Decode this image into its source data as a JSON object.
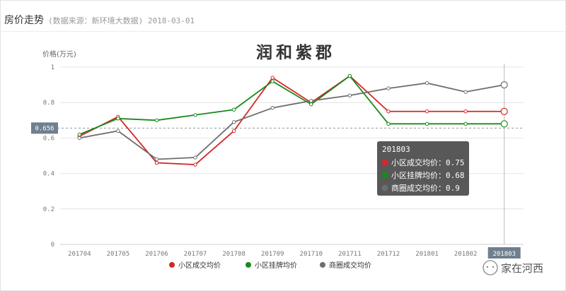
{
  "header": {
    "title": "房价走势",
    "subtitle": "(数据来源：新环境大数据) 2018-03-01"
  },
  "watermark": {
    "text": "家在河西",
    "icon": "wechat-icon"
  },
  "chart_data": {
    "type": "line",
    "title": "润和紫郡",
    "ylabel": "价格(万元)",
    "xlabel": "",
    "ylim": [
      0,
      1
    ],
    "yticks": [
      0,
      0.2,
      0.4,
      0.6,
      0.8,
      1
    ],
    "ytick_labels": [
      "0",
      "0.2",
      "0.4",
      "0.6",
      "0.8",
      "1"
    ],
    "grid": true,
    "legend_position": "bottom",
    "categories": [
      "201704",
      "201705",
      "201706",
      "201707",
      "201708",
      "201709",
      "201710",
      "201711",
      "201712",
      "201801",
      "201802",
      "201803"
    ],
    "series": [
      {
        "name": "小区成交均价",
        "color": "#d62728",
        "values": [
          0.61,
          0.72,
          0.46,
          0.45,
          0.64,
          0.94,
          0.8,
          0.95,
          0.75,
          0.75,
          0.75,
          0.75
        ]
      },
      {
        "name": "小区挂牌均价",
        "color": "#1a8a1a",
        "values": [
          0.62,
          0.71,
          0.7,
          0.73,
          0.76,
          0.92,
          0.79,
          0.95,
          0.68,
          0.68,
          0.68,
          0.68
        ]
      },
      {
        "name": "商圈成交均价",
        "color": "#6e6e6e",
        "values": [
          0.6,
          0.64,
          0.48,
          0.49,
          0.69,
          0.77,
          0.81,
          0.84,
          0.88,
          0.91,
          0.86,
          0.9
        ]
      }
    ],
    "reference_line": {
      "value": 0.656,
      "label": "0.656"
    },
    "highlight_category": "201803",
    "tooltip": {
      "title": "201803",
      "items": [
        {
          "label": "小区成交均价：",
          "value": "0.75",
          "color": "#d62728"
        },
        {
          "label": "小区挂牌均价：",
          "value": "0.68",
          "color": "#1a8a1a"
        },
        {
          "label": "商圈成交均价：",
          "value": "0.9",
          "color": "#6e6e6e"
        }
      ]
    }
  }
}
